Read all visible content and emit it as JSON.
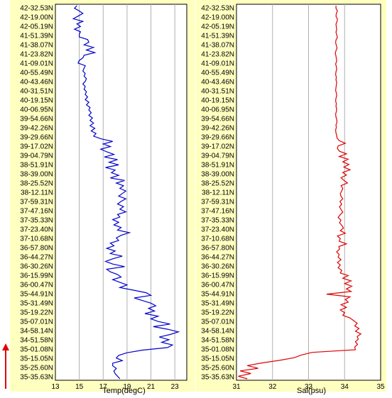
{
  "chart_data": [
    {
      "type": "line",
      "xlabel": "Temp(degC)",
      "ylabel": "",
      "xlim": [
        13,
        24
      ],
      "xticks": [
        13,
        15,
        17,
        19,
        21,
        23
      ],
      "grid_x": [
        15,
        17,
        19,
        21,
        23
      ],
      "line_color": "#0000cc",
      "background": "#ffffc0",
      "y_ticks": [
        "42-32.53N",
        "42-19.00N",
        "42-05.19N",
        "41-51.39N",
        "41-38.07N",
        "41-23.82N",
        "41-09.01N",
        "40-55.49N",
        "40-43.46N",
        "40-31.51N",
        "40-19.15N",
        "40-06.95N",
        "39-54.66N",
        "39-42.26N",
        "39-29.66N",
        "39-17.02N",
        "39-04.79N",
        "38-51.91N",
        "38-39.00N",
        "38-25.52N",
        "38-12.11N",
        "37-59.31N",
        "37-47.16N",
        "37-35.33N",
        "37-23.40N",
        "37-10.68N",
        "36-57.80N",
        "36-44.27N",
        "36-30.26N",
        "36-15.99N",
        "36-00.47N",
        "35-44.91N",
        "35-31.49N",
        "35-19.22N",
        "35-07.01N",
        "34-58.14N",
        "34-51.58N",
        "35-01.08N",
        "35-15.05N",
        "35-25.60N",
        "35-35.63N"
      ],
      "series": [
        {
          "values": [
            14.8,
            14.6,
            15.0,
            15.3,
            14.9,
            14.5,
            15.3,
            14.8,
            15.1,
            14.6,
            15.1,
            15.0,
            15.0,
            15.7,
            15.8,
            15.4,
            16.2,
            15.6,
            16.3,
            15.4,
            15.3,
            15.0,
            14.9,
            15.5,
            15.4,
            15.3,
            15.5,
            15.4,
            15.6,
            15.5,
            15.3,
            15.5,
            15.4,
            15.6,
            15.5,
            15.7,
            15.5,
            15.8,
            15.6,
            15.9,
            15.8,
            16.0,
            15.8,
            16.1,
            15.9,
            16.2,
            15.9,
            16.3,
            16.0,
            16.4,
            16.2,
            16.8,
            17.8,
            17.0,
            17.6,
            16.8,
            17.3,
            17.9,
            17.1,
            18.2,
            17.5,
            18.3,
            17.2,
            18.0,
            17.7,
            18.3,
            17.6,
            18.8,
            18.1,
            18.7,
            18.4,
            18.9,
            18.6,
            18.3,
            18.9,
            18.5,
            18.2,
            18.7,
            18.4,
            18.9,
            18.2,
            18.4,
            17.8,
            18.3,
            17.9,
            18.5,
            18.2,
            19.2,
            18.5,
            18.1,
            18.3,
            17.6,
            17.9,
            17.3,
            18.0,
            17.6,
            18.6,
            17.8,
            17.2,
            17.8,
            18.8,
            17.3,
            17.6,
            18.2,
            18.5,
            17.8,
            18.4,
            19.0,
            18.4,
            19.5,
            20.6,
            21.0,
            19.6,
            20.3,
            21.0,
            21.4,
            20.8,
            21.3,
            20.5,
            21.6,
            21.0,
            21.6,
            22.6,
            21.2,
            22.4,
            23.3,
            22.6,
            21.7,
            22.5,
            21.9,
            22.8,
            22.4,
            20.3,
            19.0,
            18.3,
            18.1,
            18.6,
            17.8,
            17.8,
            18.1,
            17.9,
            18.0,
            18.2,
            18.4
          ]
        }
      ]
    },
    {
      "type": "line",
      "xlabel": "Sal(psu)",
      "ylabel": "",
      "xlim": [
        31,
        35
      ],
      "xticks": [
        31,
        32,
        33,
        34,
        35
      ],
      "grid_x": [
        32,
        33,
        34
      ],
      "line_color": "#dd0000",
      "background": "#ffffc0",
      "y_ticks": [
        "42-32.53N",
        "42-19.00N",
        "42-05.19N",
        "41-51.39N",
        "41-38.07N",
        "41-23.82N",
        "41-09.01N",
        "40-55.49N",
        "40-43.46N",
        "40-31.51N",
        "40-19.15N",
        "40-06.95N",
        "39-54.66N",
        "39-42.26N",
        "39-29.66N",
        "39-17.02N",
        "39-04.79N",
        "38-51.91N",
        "38-39.00N",
        "38-25.52N",
        "38-12.11N",
        "37-59.31N",
        "37-47.16N",
        "37-35.33N",
        "37-23.40N",
        "37-10.68N",
        "36-57.80N",
        "36-44.27N",
        "36-30.26N",
        "36-15.99N",
        "36-00.47N",
        "35-44.91N",
        "35-31.49N",
        "35-19.22N",
        "35-07.01N",
        "34-58.14N",
        "34-51.58N",
        "35-01.08N",
        "35-15.05N",
        "35-25.60N",
        "35-35.63N"
      ],
      "series": [
        {
          "values": [
            33.76,
            33.76,
            33.8,
            33.77,
            33.76,
            33.8,
            33.79,
            33.76,
            33.77,
            33.78,
            33.76,
            33.78,
            33.8,
            33.76,
            33.75,
            33.77,
            33.79,
            33.76,
            33.74,
            33.76,
            33.77,
            33.78,
            33.75,
            33.77,
            33.78,
            33.76,
            33.75,
            33.77,
            33.76,
            33.78,
            33.77,
            33.76,
            33.75,
            33.77,
            33.78,
            33.76,
            33.75,
            33.77,
            33.76,
            33.78,
            33.77,
            33.75,
            33.76,
            33.78,
            33.79,
            33.76,
            33.77,
            33.75,
            33.76,
            33.78,
            33.79,
            33.85,
            34.02,
            33.82,
            33.8,
            33.86,
            34.05,
            33.85,
            34.1,
            33.95,
            34.12,
            33.98,
            34.15,
            33.95,
            34.05,
            33.9,
            33.98,
            34.08,
            33.9,
            33.95,
            33.92,
            33.88,
            33.9,
            33.95,
            33.87,
            33.92,
            33.86,
            33.9,
            33.95,
            33.88,
            33.82,
            33.9,
            33.86,
            33.92,
            33.97,
            33.88,
            34.02,
            33.8,
            33.88,
            33.85,
            34.05,
            33.84,
            33.86,
            33.78,
            33.85,
            33.82,
            33.9,
            33.8,
            33.88,
            33.82,
            33.92,
            33.88,
            34.1,
            33.95,
            34.18,
            34.0,
            34.2,
            34.05,
            34.18,
            33.5,
            34.15,
            34.02,
            34.1,
            33.9,
            34.05,
            33.88,
            34.0,
            33.95,
            34.15,
            34.25,
            34.35,
            34.28,
            34.4,
            34.3,
            34.45,
            34.35,
            34.38,
            34.3,
            34.36,
            34.28,
            34.3,
            33.1,
            32.8,
            32.6,
            32.2,
            31.7,
            31.3,
            31.6,
            31.1,
            31.4,
            31.05,
            31.3
          ]
        }
      ]
    }
  ]
}
